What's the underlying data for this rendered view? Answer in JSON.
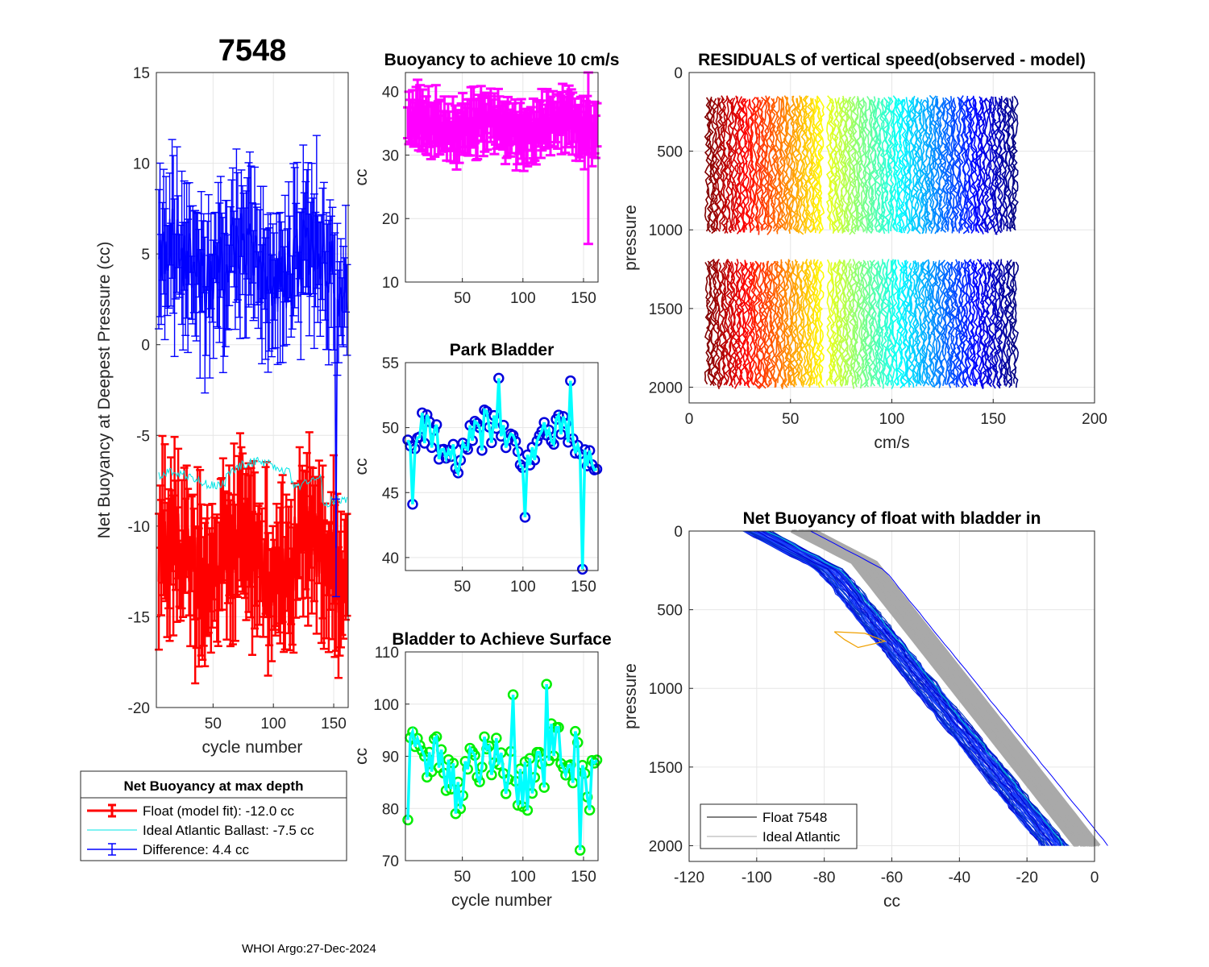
{
  "figure_title": "7548",
  "footer": "WHOI Argo:27-Dec-2024",
  "colors": {
    "float": "#ff0000",
    "ideal": "#00e5e5",
    "difference": "#0000ff",
    "buoyancy": "#ff00ff",
    "park_marker": "#0000dd",
    "park_line": "#00ffff",
    "surface_marker": "#00ee00",
    "surface_line": "#00ffff",
    "grid": "#e6e6e6"
  },
  "chart_data": [
    {
      "id": "net_buoyancy",
      "type": "line",
      "title": "7548",
      "xlabel": "cycle number",
      "ylabel": "Net Buoyancy at Deepest Pressure (cc)",
      "xlim": [
        3,
        162
      ],
      "ylim": [
        -20,
        15
      ],
      "xticks": [
        50,
        100,
        150
      ],
      "yticks": [
        -20,
        -15,
        -10,
        -5,
        0,
        5,
        10,
        15
      ],
      "series": [
        {
          "name": "Float (model fit): -12.0 cc",
          "mean": -11.8,
          "amplitude": 2.2,
          "error": 3.0,
          "step": 1
        },
        {
          "name": "Ideal Atlantic Ballast:  -7.5 cc",
          "mean": -7.4,
          "amplitude": 0.4
        },
        {
          "name": "Difference:   4.4 cc",
          "mean": 4.4,
          "amplitude": 2.0,
          "error": 3.0,
          "step": 1
        }
      ],
      "legend": {
        "title": "Net Buoyancy at max depth",
        "entries": [
          "Float (model fit): -12.0 cc",
          "Ideal Atlantic Ballast:  -7.5 cc",
          "Difference:   4.4 cc"
        ],
        "placement": "below"
      }
    },
    {
      "id": "buoyancy_10cms",
      "type": "line",
      "title": "Buoyancy to achieve 10 cm/s",
      "xlabel": "",
      "ylabel": "cc",
      "xlim": [
        3,
        162
      ],
      "ylim": [
        10,
        43
      ],
      "xticks": [
        50,
        100,
        150
      ],
      "yticks": [
        10,
        20,
        30,
        40
      ],
      "series": [
        {
          "name": "buoyancy",
          "mean": 34.5,
          "amplitude": 1.8,
          "error": 3.5
        }
      ]
    },
    {
      "id": "park_bladder",
      "type": "line",
      "title": "Park Bladder",
      "xlabel": "",
      "ylabel": "cc",
      "xlim": [
        3,
        162
      ],
      "ylim": [
        39,
        55
      ],
      "xticks": [
        50,
        100,
        150
      ],
      "yticks": [
        40,
        45,
        50,
        55
      ],
      "series": [
        {
          "name": "park bladder",
          "mean": 49.0,
          "amplitude": 1.6
        }
      ]
    },
    {
      "id": "surface_bladder",
      "type": "line",
      "title": "Bladder to Achieve Surface",
      "xlabel": "cycle number",
      "ylabel": "cc",
      "xlim": [
        3,
        162
      ],
      "ylim": [
        70,
        110
      ],
      "xticks": [
        50,
        100,
        150
      ],
      "yticks": [
        70,
        80,
        90,
        100,
        110
      ],
      "series": [
        {
          "name": "surface bladder",
          "mean": 88.0,
          "amplitude": 6.0
        }
      ]
    },
    {
      "id": "residuals",
      "type": "line",
      "title": "RESIDUALS of vertical speed(observed - model)",
      "xlabel": "cm/s",
      "ylabel": "pressure",
      "xlim": [
        0,
        200
      ],
      "ylim": [
        0,
        2100
      ],
      "y_reversed": true,
      "xticks": [
        0,
        50,
        100,
        150,
        200
      ],
      "yticks": [
        0,
        500,
        1000,
        1500,
        2000
      ],
      "profiles": {
        "count": 155,
        "x_start": 9,
        "x_end": 161,
        "upper_range": [
          160,
          1020
        ],
        "lower_range": [
          1200,
          2000
        ]
      }
    },
    {
      "id": "net_buoyancy_bladder_in",
      "type": "line",
      "title": "Net Buoyancy of float with bladder in",
      "xlabel": "cc",
      "ylabel": "pressure",
      "xlim": [
        -120,
        0
      ],
      "ylim": [
        0,
        2100
      ],
      "y_reversed": true,
      "xticks": [
        -120,
        -100,
        -80,
        -60,
        -40,
        -20,
        0
      ],
      "yticks": [
        0,
        500,
        1000,
        1500,
        2000
      ],
      "legend": {
        "entries": [
          "Float 7548",
          "Ideal Atlantic"
        ],
        "placement": "bottom-left"
      }
    }
  ]
}
